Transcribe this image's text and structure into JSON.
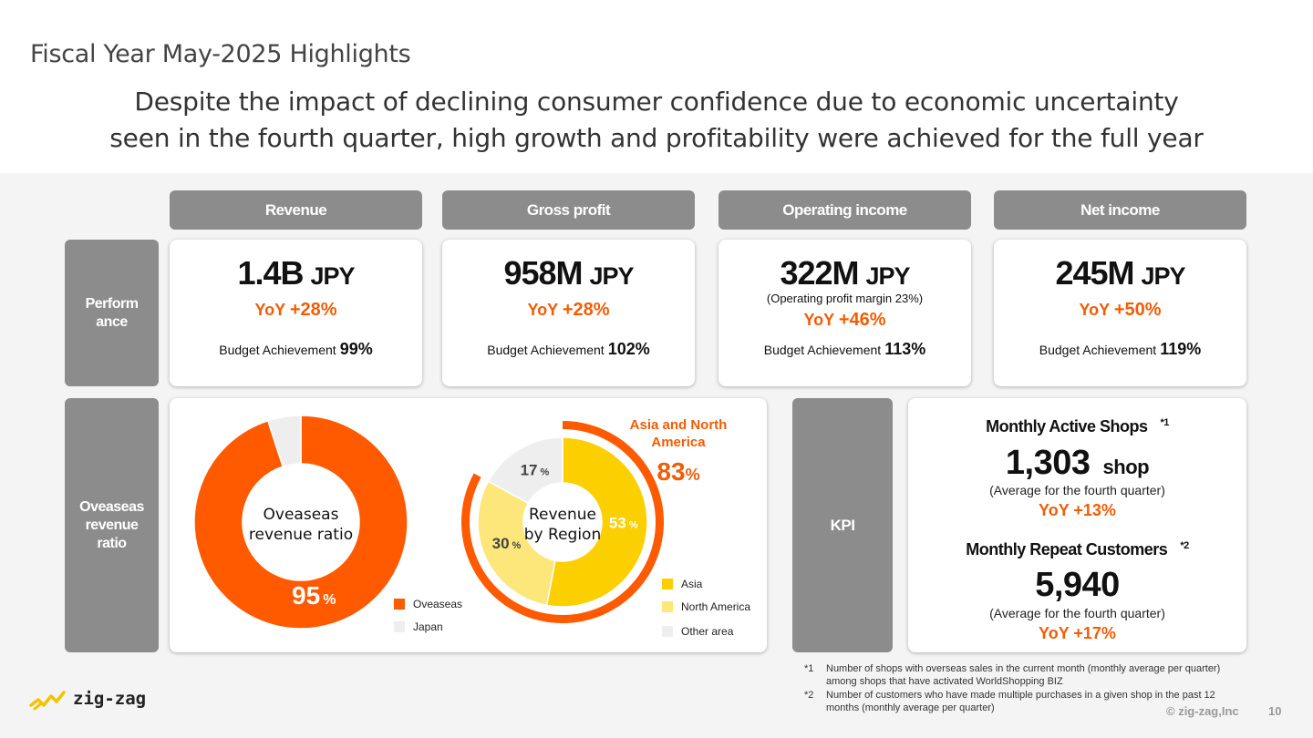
{
  "title": "Fiscal Year May-2025 Highlights",
  "headline": {
    "line1": "Despite the impact of declining consumer confidence due to economic uncertainty",
    "line2": "seen in the fourth quarter, high growth and profitability were achieved for the full year"
  },
  "headers": [
    "Revenue",
    "Gross profit",
    "Operating income",
    "Net income"
  ],
  "row_labels": {
    "performance": "Perform ance",
    "overseas": "Oveaseas revenue ratio",
    "kpi": "KPI"
  },
  "performance": [
    {
      "value": "1.4B",
      "unit": "JPY",
      "yoy_label": "YoY",
      "yoy": "+28%",
      "budget_label": "Budget Achievement",
      "budget": "99%"
    },
    {
      "value": "958M",
      "unit": "JPY",
      "yoy_label": "YoY",
      "yoy": "+28%",
      "budget_label": "Budget Achievement",
      "budget": "102%"
    },
    {
      "value": "322M",
      "unit": "JPY",
      "note": "(Operating profit margin 23%)",
      "yoy_label": "YoY",
      "yoy": "+46%",
      "budget_label": "Budget Achievement",
      "budget": "113%"
    },
    {
      "value": "245M",
      "unit": "JPY",
      "yoy_label": "YoY",
      "yoy": "+50%",
      "budget_label": "Budget Achievement",
      "budget": "119%"
    }
  ],
  "chart_data": [
    {
      "type": "pie",
      "title": "Oveaseas revenue ratio",
      "labels": [
        "Oveaseas",
        "Japan"
      ],
      "values": [
        95,
        5
      ],
      "data_labels": [
        "95",
        ""
      ],
      "unit": "%",
      "colors": [
        "#ff5a00",
        "#eeeeee"
      ],
      "legend": "bottom-right"
    },
    {
      "type": "pie",
      "title": "Revenue by Region",
      "labels": [
        "Asia",
        "North America",
        "Other area"
      ],
      "values": [
        53,
        30,
        17
      ],
      "data_labels": [
        "53",
        "30",
        "17"
      ],
      "unit": "%",
      "colors": [
        "#fcd000",
        "#fde77a",
        "#eeeeee"
      ],
      "annotation": {
        "label": "Asia and North America",
        "value": "83",
        "unit": "%"
      },
      "legend": "bottom-right"
    }
  ],
  "kpi": {
    "shops": {
      "title": "Monthly Active Shops",
      "mark": "*1",
      "value": "1,303",
      "unit": "shop",
      "avg": "(Average for the fourth quarter)",
      "yoy": "YoY +13%"
    },
    "repeat": {
      "title": "Monthly Repeat Customers",
      "mark": "*2",
      "value": "5,940",
      "avg": "(Average for the fourth quarter)",
      "yoy": "YoY +17%"
    }
  },
  "footnotes": [
    {
      "mark": "*1",
      "text": "Number of shops with overseas sales in the current month (monthly average per quarter) among shops that have activated WorldShopping BIZ"
    },
    {
      "mark": "*2",
      "text": "Number of customers who have made multiple purchases in a given shop in the past 12 months (monthly average per quarter)"
    }
  ],
  "logo": "zig-zag",
  "copyright": "© zig-zag,Inc",
  "page_number": "10",
  "colors": {
    "accent": "#f25c05",
    "header_gray": "#8c8c8c",
    "panel_bg": "#f4f4f4"
  }
}
